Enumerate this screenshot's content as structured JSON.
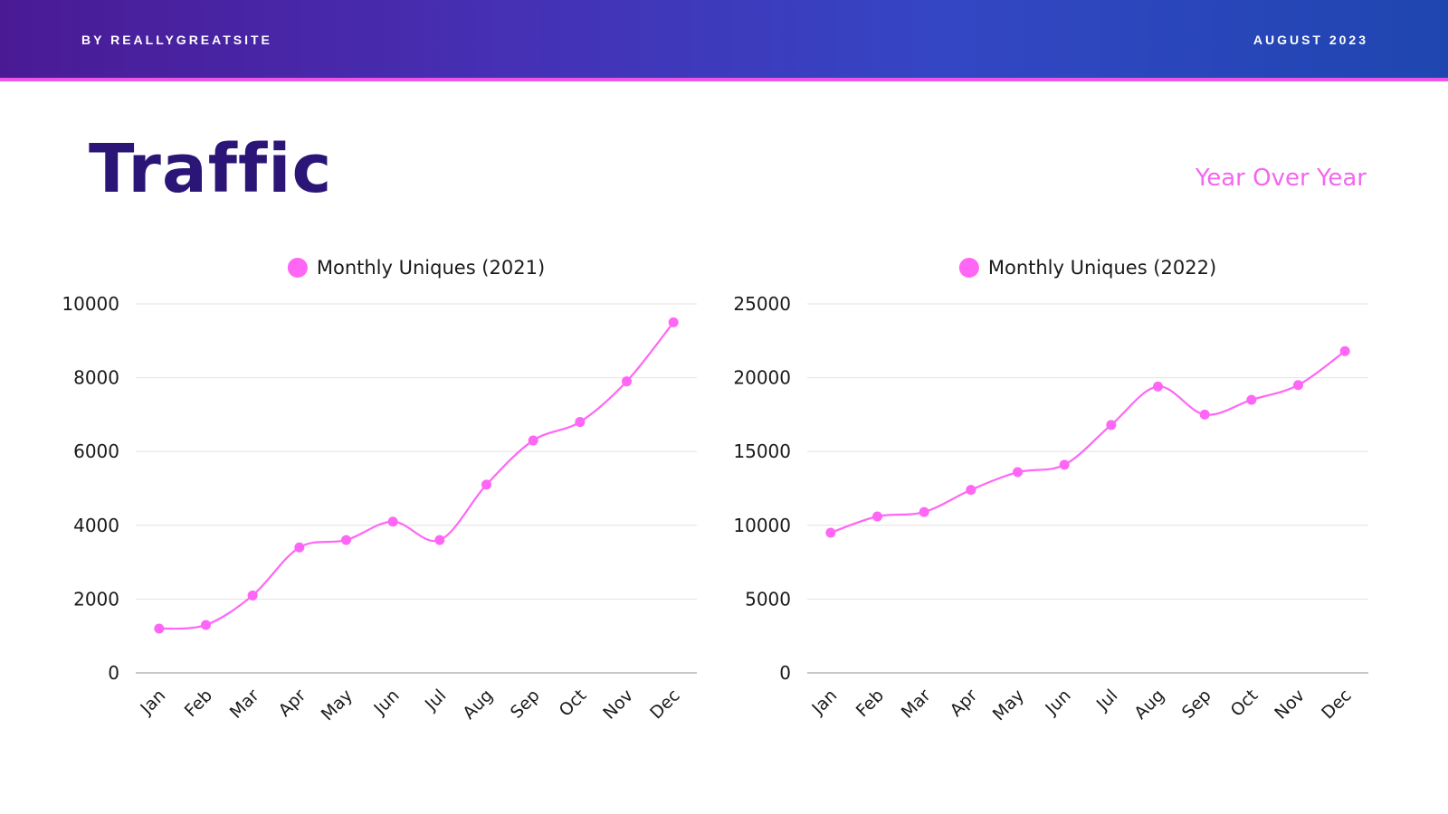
{
  "header": {
    "byline": "BY REALLYGREATSITE",
    "date": "AUGUST 2023"
  },
  "title": "Traffic",
  "subtitle": "Year Over Year",
  "colors": {
    "accent": "#ff66f5",
    "title": "#2b1677",
    "grid": "#e3e3e3",
    "axis": "#b5b5b5",
    "text": "#1a1a1a"
  },
  "chart_data": [
    {
      "type": "line",
      "categories": [
        "Jan",
        "Feb",
        "Mar",
        "Apr",
        "May",
        "Jun",
        "Jul",
        "Aug",
        "Sep",
        "Oct",
        "Nov",
        "Dec"
      ],
      "series": [
        {
          "name": "Monthly Uniques (2021)",
          "values": [
            1200,
            1300,
            2100,
            3400,
            3600,
            4100,
            3600,
            5100,
            6300,
            6800,
            7900,
            9500
          ]
        }
      ],
      "ylim": [
        0,
        10000
      ],
      "yticks": [
        0,
        2000,
        4000,
        6000,
        8000,
        10000
      ],
      "grid": true,
      "legend": "top-center",
      "smooth": true
    },
    {
      "type": "line",
      "categories": [
        "Jan",
        "Feb",
        "Mar",
        "Apr",
        "May",
        "Jun",
        "Jul",
        "Aug",
        "Sep",
        "Oct",
        "Nov",
        "Dec"
      ],
      "series": [
        {
          "name": "Monthly Uniques (2022)",
          "values": [
            9500,
            10600,
            10900,
            12400,
            13600,
            14100,
            16800,
            19400,
            17500,
            18500,
            19500,
            21800
          ]
        }
      ],
      "ylim": [
        0,
        25000
      ],
      "yticks": [
        0,
        5000,
        10000,
        15000,
        20000,
        25000
      ],
      "grid": true,
      "legend": "top-center",
      "smooth": true
    }
  ]
}
